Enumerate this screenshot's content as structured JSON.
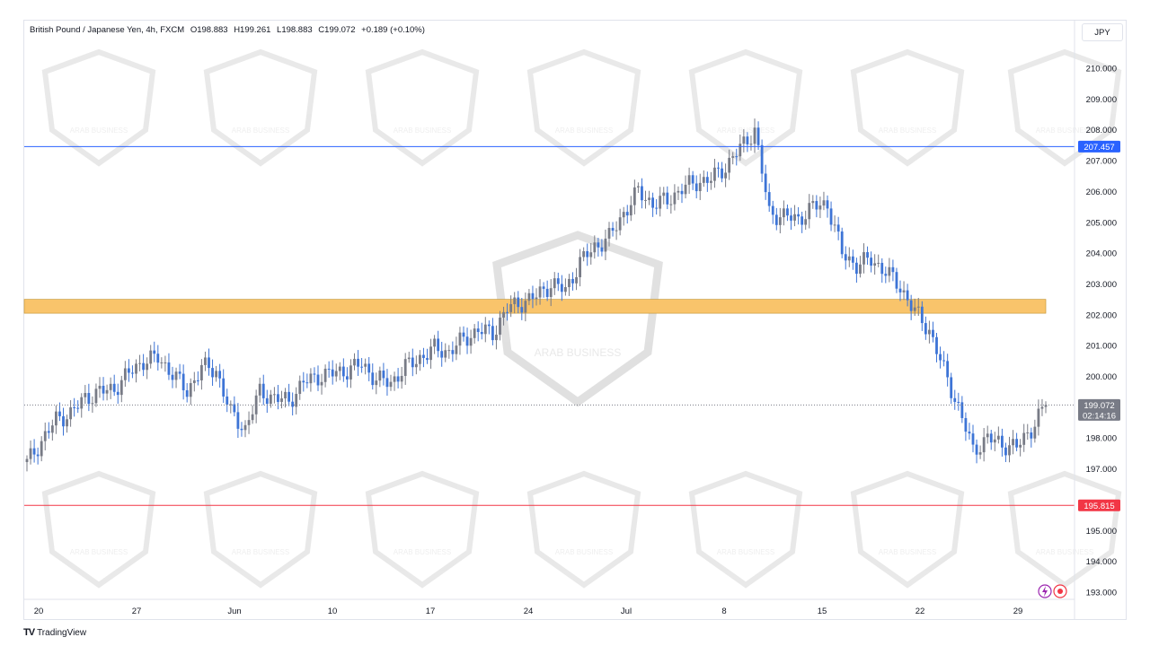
{
  "header": {
    "symbol": "British Pound / Japanese Yen, 4h, FXCM",
    "open": "O198.883",
    "high": "H199.261",
    "low": "L198.883",
    "close": "C199.072",
    "change": "+0.189 (+0.10%)"
  },
  "currency_button": "JPY",
  "footer": {
    "brand": "TradingView"
  },
  "watermark": {
    "text": "ARAB BUSINESS"
  },
  "chart_data": {
    "type": "candlestick",
    "title": "British Pound / Japanese Yen, 4h, FXCM",
    "ylim": [
      193.0,
      210.0
    ],
    "y_ticks": [
      "210.000",
      "209.000",
      "208.000",
      "207.000",
      "206.000",
      "205.000",
      "204.000",
      "203.000",
      "202.000",
      "201.000",
      "200.000",
      "198.000",
      "197.000",
      "195.000",
      "194.000",
      "193.000"
    ],
    "x_ticks": [
      "20",
      "27",
      "Jun",
      "10",
      "17",
      "24",
      "Jul",
      "8",
      "15",
      "22",
      "29"
    ],
    "x_tick_index": [
      0,
      7,
      14,
      21,
      28,
      35,
      42,
      49,
      56,
      63,
      70
    ],
    "price_path_close": [
      197.2,
      197.9,
      198.6,
      198.8,
      199.3,
      199.5,
      199.6,
      200.1,
      200.5,
      200.6,
      200.1,
      199.5,
      200.3,
      200.2,
      198.8,
      198.3,
      199.5,
      199.3,
      199.2,
      199.8,
      200.0,
      200.1,
      200.2,
      200.4,
      199.9,
      199.8,
      200.3,
      200.6,
      200.9,
      200.8,
      201.2,
      201.5,
      201.4,
      202.2,
      202.4,
      202.6,
      203.0,
      202.8,
      203.7,
      204.2,
      204.5,
      205.3,
      206.0,
      205.6,
      205.7,
      206.1,
      206.3,
      206.4,
      206.8,
      207.4,
      208.0,
      205.3,
      205.2,
      205.1,
      205.5,
      205.6,
      204.0,
      203.6,
      203.8,
      203.4,
      202.9,
      202.1,
      201.5,
      200.2,
      199.0,
      197.6,
      198.0,
      197.8,
      197.7,
      198.3,
      199.07
    ],
    "candles_count": 71,
    "levels": [
      {
        "name": "resistance",
        "value": "207.457",
        "value_num": 207.457,
        "color": "#2962ff"
      },
      {
        "name": "support",
        "value": "195.815",
        "value_num": 195.815,
        "color": "#f23645"
      },
      {
        "name": "last_price",
        "value": "199.072",
        "value_num": 199.072,
        "color": "#787b86"
      }
    ],
    "zone": {
      "from": 202.05,
      "to": 202.5,
      "color": "#f9c46b"
    },
    "countdown": "02:14:16",
    "colors": {
      "up": "#787b86",
      "down": "#3d74d6"
    }
  }
}
